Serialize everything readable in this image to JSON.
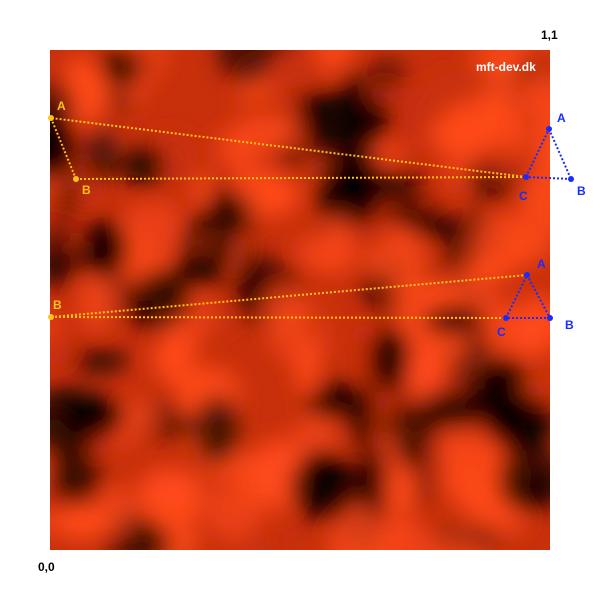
{
  "corners": {
    "top_right": "1,1",
    "bottom_left": "0,0"
  },
  "watermark": "mft-dev.dk",
  "colors": {
    "background": "#ffffff",
    "texture_dark": "#000000",
    "texture_mid": "#c8300c",
    "texture_bright": "#ff4a1a",
    "yellow": "#ffc21a",
    "blue": "#1a2bff",
    "corner_text": "#000000",
    "watermark_text": "#ffffff"
  },
  "upper_figure": {
    "yellow_labels": {
      "a": "A",
      "b": "B"
    },
    "blue_labels": {
      "a": "A",
      "b": "B",
      "c": "C"
    }
  },
  "lower_figure": {
    "yellow_labels": {
      "b": "B"
    },
    "blue_labels": {
      "a": "A",
      "b": "B",
      "c": "C"
    }
  }
}
